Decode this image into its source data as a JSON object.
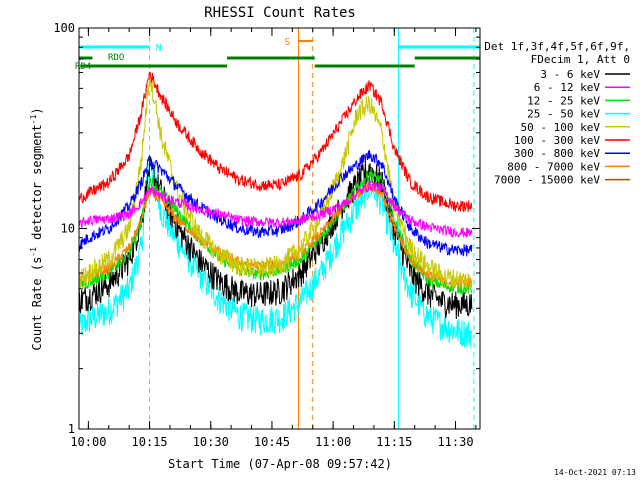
{
  "chart_data": {
    "type": "line",
    "title": "RHESSI Count Rates",
    "xlabel": "Start Time (07-Apr-08 09:57:42)",
    "ylabel": "Count Rate (s⁻¹ detector segment⁻¹)",
    "ylabel_parts": {
      "a": "Count Rate (s",
      "b": "-1",
      "c": " detector segment",
      "d": "-1",
      "e": ")"
    },
    "yscale": "log",
    "ylim": [
      1,
      100
    ],
    "xlim": [
      "09:57:42",
      "11:36:00"
    ],
    "x_ticks": [
      "10:00",
      "10:15",
      "10:30",
      "10:45",
      "11:00",
      "11:15",
      "11:30"
    ],
    "y_ticks": [
      "1",
      "10",
      "100"
    ],
    "x_sample_times": [
      "09:57:42",
      "10:00",
      "10:05",
      "10:10",
      "10:13",
      "10:15",
      "10:18",
      "10:22",
      "10:27",
      "10:32",
      "10:37",
      "10:42",
      "10:47",
      "10:52",
      "10:57",
      "11:02",
      "11:06",
      "11:09",
      "11:12",
      "11:15",
      "11:19",
      "11:23",
      "11:27",
      "11:30",
      "11:34"
    ],
    "legend": {
      "header_1": "Det 1f,3f,4f,5f,6f,9f,",
      "header_2": "FDecim 1, Att 0",
      "position": "right"
    },
    "series": [
      {
        "name": "3 - 6 keV",
        "color": "#000000",
        "noise": 0.16,
        "values": [
          4.4,
          4.6,
          5.3,
          7.0,
          11.0,
          20.0,
          15.0,
          10.0,
          7.0,
          5.5,
          4.8,
          4.7,
          4.9,
          6.0,
          8.5,
          13.0,
          17.0,
          20.0,
          17.0,
          10.0,
          6.0,
          4.8,
          4.3,
          4.2,
          4.2
        ]
      },
      {
        "name": "6 - 12 keV",
        "color": "#ff00ff",
        "noise": 0.06,
        "values": [
          10.5,
          11.0,
          11.2,
          11.8,
          13.5,
          15.5,
          14.5,
          13.5,
          12.5,
          11.8,
          11.0,
          10.8,
          10.7,
          11.0,
          11.8,
          13.0,
          15.0,
          16.5,
          16.0,
          13.0,
          11.0,
          10.2,
          9.8,
          9.6,
          9.5
        ]
      },
      {
        "name": "12 - 25 keV",
        "color": "#00e000",
        "noise": 0.07,
        "values": [
          5.2,
          5.4,
          6.0,
          7.5,
          11.0,
          17.5,
          15.0,
          12.0,
          9.0,
          7.2,
          6.2,
          5.9,
          6.2,
          7.0,
          9.0,
          12.5,
          16.0,
          19.0,
          17.0,
          11.0,
          7.0,
          5.6,
          5.2,
          5.1,
          5.0
        ]
      },
      {
        "name": "25 - 50 keV",
        "color": "#00ffff",
        "noise": 0.17,
        "values": [
          3.2,
          3.5,
          3.9,
          5.0,
          8.0,
          23.0,
          12.0,
          8.5,
          6.0,
          4.5,
          3.7,
          3.5,
          3.6,
          4.3,
          6.0,
          9.5,
          13.0,
          16.5,
          13.5,
          8.0,
          4.8,
          3.7,
          3.3,
          3.1,
          3.0
        ]
      },
      {
        "name": "50 - 100 keV",
        "color": "#c8c800",
        "noise": 0.12,
        "values": [
          5.6,
          6.0,
          7.0,
          10.0,
          22.0,
          60.0,
          28.0,
          15.0,
          9.5,
          7.5,
          6.5,
          6.3,
          6.6,
          8.0,
          11.5,
          20.0,
          38.0,
          42.0,
          30.0,
          13.0,
          8.0,
          6.5,
          5.8,
          5.6,
          5.5
        ]
      },
      {
        "name": "100 - 300 keV",
        "color": "#ff0000",
        "noise": 0.07,
        "values": [
          14.0,
          15.0,
          17.0,
          23.0,
          38.0,
          60.0,
          45.0,
          33.0,
          25.0,
          20.0,
          17.5,
          16.5,
          16.5,
          18.5,
          24.0,
          34.0,
          45.0,
          52.0,
          42.0,
          25.0,
          17.0,
          14.5,
          13.5,
          13.0,
          13.0
        ]
      },
      {
        "name": "300 - 800 keV",
        "color": "#0000ff",
        "noise": 0.07,
        "values": [
          8.2,
          9.0,
          10.0,
          13.0,
          17.0,
          22.0,
          19.5,
          16.0,
          13.0,
          11.2,
          10.0,
          9.6,
          9.8,
          11.0,
          13.5,
          18.0,
          21.0,
          23.5,
          21.0,
          14.0,
          10.0,
          8.5,
          8.0,
          7.8,
          7.8
        ]
      },
      {
        "name": "800 - 7000 keV",
        "color": "#ff8000",
        "noise": 0.06,
        "values": [
          5.6,
          5.8,
          6.4,
          8.0,
          11.0,
          15.5,
          13.5,
          11.0,
          9.0,
          7.6,
          6.8,
          6.5,
          6.7,
          7.5,
          9.5,
          12.5,
          15.0,
          16.5,
          15.0,
          10.0,
          7.0,
          5.9,
          5.5,
          5.4,
          5.4
        ]
      },
      {
        "name": "7000 - 15000 keV",
        "color": "#a05000",
        "noise": 0.05,
        "values": [
          null,
          null,
          null,
          null,
          null,
          null,
          null,
          null,
          null,
          null,
          null,
          null,
          null,
          null,
          null,
          null,
          null,
          null,
          null,
          null,
          null,
          null,
          null,
          null,
          null
        ]
      }
    ],
    "flag_bars": {
      "N_label": "N",
      "S_label": "S",
      "RDO_label": "RDO",
      "RD4_label": "RD4",
      "N_color": "#00ffff",
      "S_color": "#ff8000",
      "RDO_color": "#008000",
      "RD4_color": "#008000",
      "N_intervals": [
        [
          "09:57:42",
          "10:15:00"
        ],
        [
          "11:16:00",
          "11:36:00"
        ]
      ],
      "S_intervals": [
        [
          "10:51:30",
          "10:55:00"
        ]
      ],
      "RDO_intervals": [
        [
          "09:57:42",
          "10:01:00"
        ],
        [
          "10:34:00",
          "10:55:30"
        ],
        [
          "11:20:00",
          "11:36:00"
        ]
      ],
      "RD4_intervals": [
        [
          "09:58:00",
          "10:34:00"
        ],
        [
          "10:55:30",
          "11:20:00"
        ]
      ]
    },
    "markers": {
      "cyan_solid": [
        "09:57:42",
        "11:16:00"
      ],
      "cyan_dashed": [
        "10:15:00",
        "11:34:30"
      ],
      "orange_solid": [
        "10:51:30"
      ],
      "orange_dashed": [
        "10:55:00"
      ]
    },
    "grid": false
  },
  "footer": {
    "timestamp": "14-Oct-2021 07:13"
  }
}
